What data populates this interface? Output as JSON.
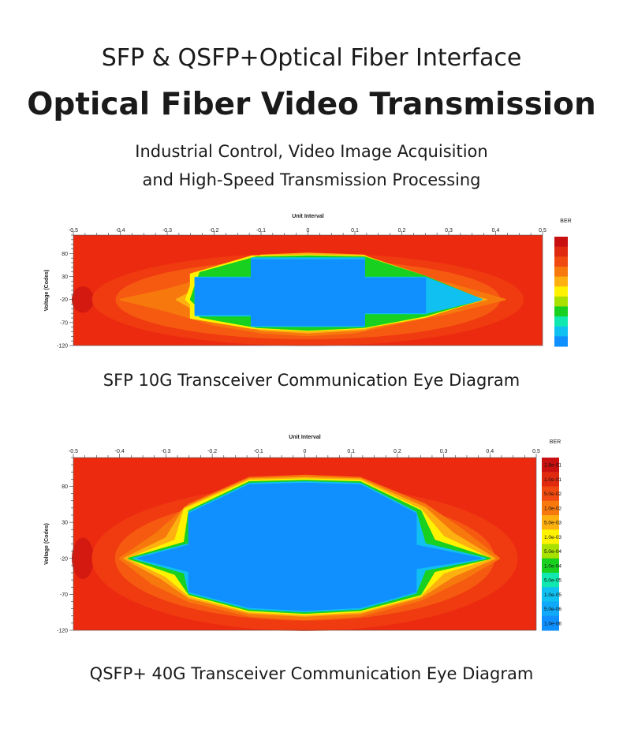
{
  "header": {
    "subtitle": "SFP & QSFP+Optical Fiber Interface",
    "title": "Optical Fiber Video Transmission",
    "desc_line1": "Industrial Control, Video Image Acquisition",
    "desc_line2": "and High-Speed Transmission Processing"
  },
  "chart_data": [
    {
      "type": "heatmap",
      "subtype": "eye-diagram contour",
      "xlabel": "Unit Interval",
      "ylabel": "Voltage (Codes)",
      "legend_title": "BER",
      "x_ticks": [
        "-0.5",
        "-0.4",
        "-0.3",
        "-0.2",
        "-0.1",
        "0",
        "0.1",
        "0.2",
        "0.3",
        "0.4",
        "0.5"
      ],
      "y_ticks": [
        "80",
        "30",
        "-20",
        "-70",
        "-120"
      ],
      "xlim": [
        -0.5,
        0.5
      ],
      "ylim": [
        -120,
        120
      ],
      "legend_colors": [
        "#c81010",
        "#e02a10",
        "#f04a10",
        "#f7780c",
        "#fdb010",
        "#fff200",
        "#a8e000",
        "#18d020",
        "#10e8b0",
        "#10c0f0",
        "#1090ff"
      ],
      "legend_labels": [],
      "caption": "SFP 10G Transceiver Communication Eye Diagram",
      "contours": [
        {
          "level": 0,
          "color": "#f7780c",
          "points": [
            [
              -0.4,
              -20
            ],
            [
              -0.3,
              2
            ],
            [
              -0.2,
              30
            ],
            [
              -0.1,
              66
            ],
            [
              0,
              72
            ],
            [
              0.1,
              66
            ],
            [
              0.2,
              35
            ],
            [
              0.3,
              15
            ],
            [
              0.42,
              -20
            ],
            [
              0.3,
              -50
            ],
            [
              0.2,
              -70
            ],
            [
              0.1,
              -92
            ],
            [
              0,
              -98
            ],
            [
              -0.1,
              -92
            ],
            [
              -0.2,
              -75
            ],
            [
              -0.3,
              -45
            ]
          ]
        },
        {
          "level": 1,
          "color": "#fdb010",
          "points": [
            [
              -0.28,
              -20
            ],
            [
              -0.22,
              12
            ],
            [
              -0.15,
              45
            ],
            [
              -0.1,
              76
            ],
            [
              0,
              80
            ],
            [
              0.12,
              76
            ],
            [
              0.18,
              40
            ],
            [
              0.3,
              0
            ],
            [
              0.38,
              -20
            ],
            [
              0.3,
              -40
            ],
            [
              0.2,
              -60
            ],
            [
              0.12,
              -85
            ],
            [
              0,
              -92
            ],
            [
              -0.1,
              -86
            ],
            [
              -0.22,
              -55
            ]
          ]
        },
        {
          "level": 2,
          "color": "#fff200",
          "points": [
            [
              -0.26,
              -20
            ],
            [
              -0.25,
              10
            ],
            [
              -0.25,
              35
            ],
            [
              -0.12,
              74
            ],
            [
              0,
              76
            ],
            [
              0.12,
              74
            ],
            [
              0.25,
              30
            ],
            [
              0.37,
              -20
            ],
            [
              0.25,
              -58
            ],
            [
              0.12,
              -82
            ],
            [
              0,
              -88
            ],
            [
              -0.12,
              -82
            ],
            [
              -0.25,
              -60
            ],
            [
              -0.25,
              -30
            ]
          ]
        },
        {
          "level": 3,
          "color": "#18d020",
          "points": [
            [
              -0.25,
              -20
            ],
            [
              -0.24,
              10
            ],
            [
              -0.23,
              38
            ],
            [
              -0.11,
              72
            ],
            [
              0,
              74
            ],
            [
              0.12,
              72
            ],
            [
              0.25,
              30
            ],
            [
              0.37,
              -20
            ],
            [
              0.25,
              -55
            ],
            [
              0.12,
              -80
            ],
            [
              0,
              -86
            ],
            [
              -0.11,
              -80
            ],
            [
              -0.23,
              -58
            ],
            [
              -0.24,
              -30
            ]
          ]
        },
        {
          "level": 4,
          "color": "#10c0f0",
          "points": [
            [
              -0.24,
              -20
            ],
            [
              -0.24,
              28
            ],
            [
              -0.12,
              28
            ],
            [
              -0.12,
              70
            ],
            [
              0.12,
              70
            ],
            [
              0.12,
              28
            ],
            [
              0.25,
              28
            ],
            [
              0.37,
              -20
            ],
            [
              0.25,
              -50
            ],
            [
              0.12,
              -50
            ],
            [
              0.12,
              -78
            ],
            [
              -0.12,
              -78
            ],
            [
              -0.12,
              -55
            ],
            [
              -0.24,
              -55
            ]
          ]
        },
        {
          "level": 5,
          "color": "#1090ff",
          "points": [
            [
              -0.24,
              -20
            ],
            [
              -0.24,
              26
            ],
            [
              -0.12,
              26
            ],
            [
              -0.12,
              66
            ],
            [
              0.12,
              66
            ],
            [
              0.12,
              26
            ],
            [
              0.25,
              26
            ],
            [
              0.25,
              -20
            ],
            [
              0.25,
              -48
            ],
            [
              0.12,
              -48
            ],
            [
              0.12,
              -76
            ],
            [
              -0.12,
              -76
            ],
            [
              -0.12,
              -52
            ],
            [
              -0.24,
              -52
            ]
          ]
        }
      ]
    },
    {
      "type": "heatmap",
      "subtype": "eye-diagram contour",
      "xlabel": "Unit Interval",
      "ylabel": "Voltage (Codes)",
      "legend_title": "BER",
      "x_ticks": [
        "-0.5",
        "-0.4",
        "-0.3",
        "-0.2",
        "-0.1",
        "0",
        "0.1",
        "0.2",
        "0.3",
        "0.4",
        "0.5"
      ],
      "y_ticks": [
        "80",
        "30",
        "-20",
        "-70",
        "-120"
      ],
      "xlim": [
        -0.5,
        0.5
      ],
      "ylim": [
        -120,
        120
      ],
      "legend_colors": [
        "#c81010",
        "#e02a10",
        "#f04a10",
        "#f7780c",
        "#fdb010",
        "#fff200",
        "#a8e000",
        "#18d020",
        "#10e8b0",
        "#10c0f0",
        "#10a8f8",
        "#1090ff"
      ],
      "legend_labels": [
        "1.8e-01",
        "1.0e-01",
        "5.0e-02",
        "1.0e-02",
        "5.0e-03",
        "1.0e-03",
        "5.0e-04",
        "1.0e-04",
        "5.0e-05",
        "1.0e-05",
        "5.0e-06",
        "1.0e-06"
      ],
      "caption": "QSFP+ 40G Transceiver Communication Eye Diagram",
      "contours": [
        {
          "level": 0,
          "color": "#f7780c",
          "points": [
            [
              -0.4,
              -20
            ],
            [
              -0.32,
              15
            ],
            [
              -0.25,
              55
            ],
            [
              -0.12,
              92
            ],
            [
              0,
              95
            ],
            [
              0.12,
              92
            ],
            [
              0.26,
              55
            ],
            [
              0.34,
              20
            ],
            [
              0.42,
              -20
            ],
            [
              0.34,
              -50
            ],
            [
              0.25,
              -78
            ],
            [
              0.12,
              -100
            ],
            [
              0,
              -105
            ],
            [
              -0.12,
              -100
            ],
            [
              -0.25,
              -80
            ],
            [
              -0.33,
              -55
            ]
          ]
        },
        {
          "level": 1,
          "color": "#fdb010",
          "points": [
            [
              -0.39,
              -20
            ],
            [
              -0.3,
              8
            ],
            [
              -0.26,
              50
            ],
            [
              -0.12,
              90
            ],
            [
              0,
              92
            ],
            [
              0.12,
              90
            ],
            [
              0.26,
              50
            ],
            [
              0.32,
              15
            ],
            [
              0.41,
              -20
            ],
            [
              0.32,
              -45
            ],
            [
              0.25,
              -74
            ],
            [
              0.12,
              -96
            ],
            [
              0,
              -100
            ],
            [
              -0.12,
              -96
            ],
            [
              -0.25,
              -75
            ],
            [
              -0.31,
              -48
            ]
          ]
        },
        {
          "level": 2,
          "color": "#fff200",
          "points": [
            [
              -0.38,
              -20
            ],
            [
              -0.28,
              5
            ],
            [
              -0.26,
              48
            ],
            [
              -0.12,
              88
            ],
            [
              0,
              90
            ],
            [
              0.12,
              88
            ],
            [
              0.25,
              48
            ],
            [
              0.3,
              10
            ],
            [
              0.4,
              -20
            ],
            [
              0.3,
              -40
            ],
            [
              0.25,
              -72
            ],
            [
              0.12,
              -94
            ],
            [
              0,
              -98
            ],
            [
              -0.12,
              -94
            ],
            [
              -0.25,
              -72
            ],
            [
              -0.3,
              -45
            ]
          ]
        },
        {
          "level": 3,
          "color": "#18d020",
          "points": [
            [
              -0.38,
              -20
            ],
            [
              -0.26,
              2
            ],
            [
              -0.25,
              46
            ],
            [
              -0.12,
              86
            ],
            [
              0,
              88
            ],
            [
              0.12,
              86
            ],
            [
              0.25,
              46
            ],
            [
              0.28,
              5
            ],
            [
              0.4,
              -20
            ],
            [
              0.28,
              -38
            ],
            [
              0.25,
              -70
            ],
            [
              0.12,
              -92
            ],
            [
              0,
              -96
            ],
            [
              -0.12,
              -92
            ],
            [
              -0.25,
              -70
            ],
            [
              -0.28,
              -42
            ]
          ]
        },
        {
          "level": 4,
          "color": "#10c0f0",
          "points": [
            [
              -0.37,
              -20
            ],
            [
              -0.25,
              0
            ],
            [
              -0.25,
              44
            ],
            [
              -0.12,
              84
            ],
            [
              0,
              86
            ],
            [
              0.12,
              84
            ],
            [
              0.24,
              44
            ],
            [
              0.26,
              0
            ],
            [
              0.39,
              -20
            ],
            [
              0.26,
              -36
            ],
            [
              0.24,
              -68
            ],
            [
              0.12,
              -90
            ],
            [
              0,
              -94
            ],
            [
              -0.12,
              -90
            ],
            [
              -0.25,
              -68
            ],
            [
              -0.26,
              -40
            ]
          ]
        },
        {
          "level": 5,
          "color": "#1090ff",
          "points": [
            [
              -0.36,
              -20
            ],
            [
              -0.25,
              -2
            ],
            [
              -0.25,
              42
            ],
            [
              -0.12,
              82
            ],
            [
              0,
              84
            ],
            [
              0.12,
              82
            ],
            [
              0.24,
              42
            ],
            [
              0.24,
              -2
            ],
            [
              0.38,
              -20
            ],
            [
              0.24,
              -34
            ],
            [
              0.24,
              -66
            ],
            [
              0.12,
              -88
            ],
            [
              0,
              -92
            ],
            [
              -0.12,
              -88
            ],
            [
              -0.25,
              -66
            ],
            [
              -0.25,
              -38
            ]
          ]
        }
      ]
    }
  ]
}
